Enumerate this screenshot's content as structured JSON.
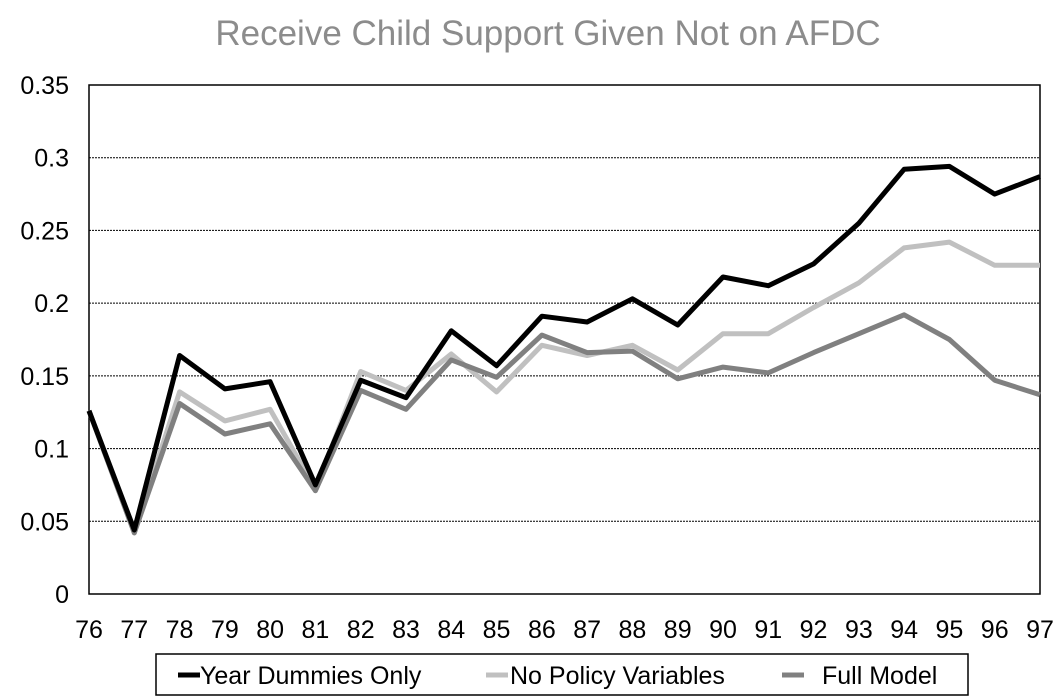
{
  "chart_data": {
    "type": "line",
    "title": "Receive Child Support Given Not on AFDC",
    "xlabel": "",
    "ylabel": "",
    "x": [
      "76",
      "77",
      "78",
      "79",
      "80",
      "81",
      "82",
      "83",
      "84",
      "85",
      "86",
      "87",
      "88",
      "89",
      "90",
      "91",
      "92",
      "93",
      "94",
      "95",
      "96",
      "97"
    ],
    "ylim": [
      0,
      0.35
    ],
    "yticks": [
      "0",
      "0.05",
      "0.1",
      "0.15",
      "0.2",
      "0.25",
      "0.3",
      "0.35"
    ],
    "grid": true,
    "legend_position": "bottom",
    "series": [
      {
        "name": "Year Dummies Only",
        "color": "#000000",
        "values": [
          0.126,
          0.044,
          0.164,
          0.141,
          0.146,
          0.075,
          0.147,
          0.135,
          0.181,
          0.157,
          0.191,
          0.187,
          0.203,
          0.185,
          0.218,
          0.212,
          0.227,
          0.255,
          0.292,
          0.294,
          0.275,
          0.287
        ]
      },
      {
        "name": "No Policy Variables",
        "color": "#c0c0c0",
        "values": [
          0.126,
          0.042,
          0.139,
          0.119,
          0.127,
          0.072,
          0.153,
          0.14,
          0.165,
          0.139,
          0.171,
          0.164,
          0.171,
          0.154,
          0.179,
          0.179,
          0.197,
          0.214,
          0.238,
          0.242,
          0.226,
          0.226
        ]
      },
      {
        "name": "Full Model",
        "color": "#808080",
        "values": [
          0.126,
          0.042,
          0.131,
          0.11,
          0.117,
          0.071,
          0.14,
          0.127,
          0.161,
          0.149,
          0.178,
          0.166,
          0.167,
          0.148,
          0.156,
          0.152,
          0.166,
          0.179,
          0.192,
          0.175,
          0.147,
          0.137
        ]
      }
    ]
  }
}
